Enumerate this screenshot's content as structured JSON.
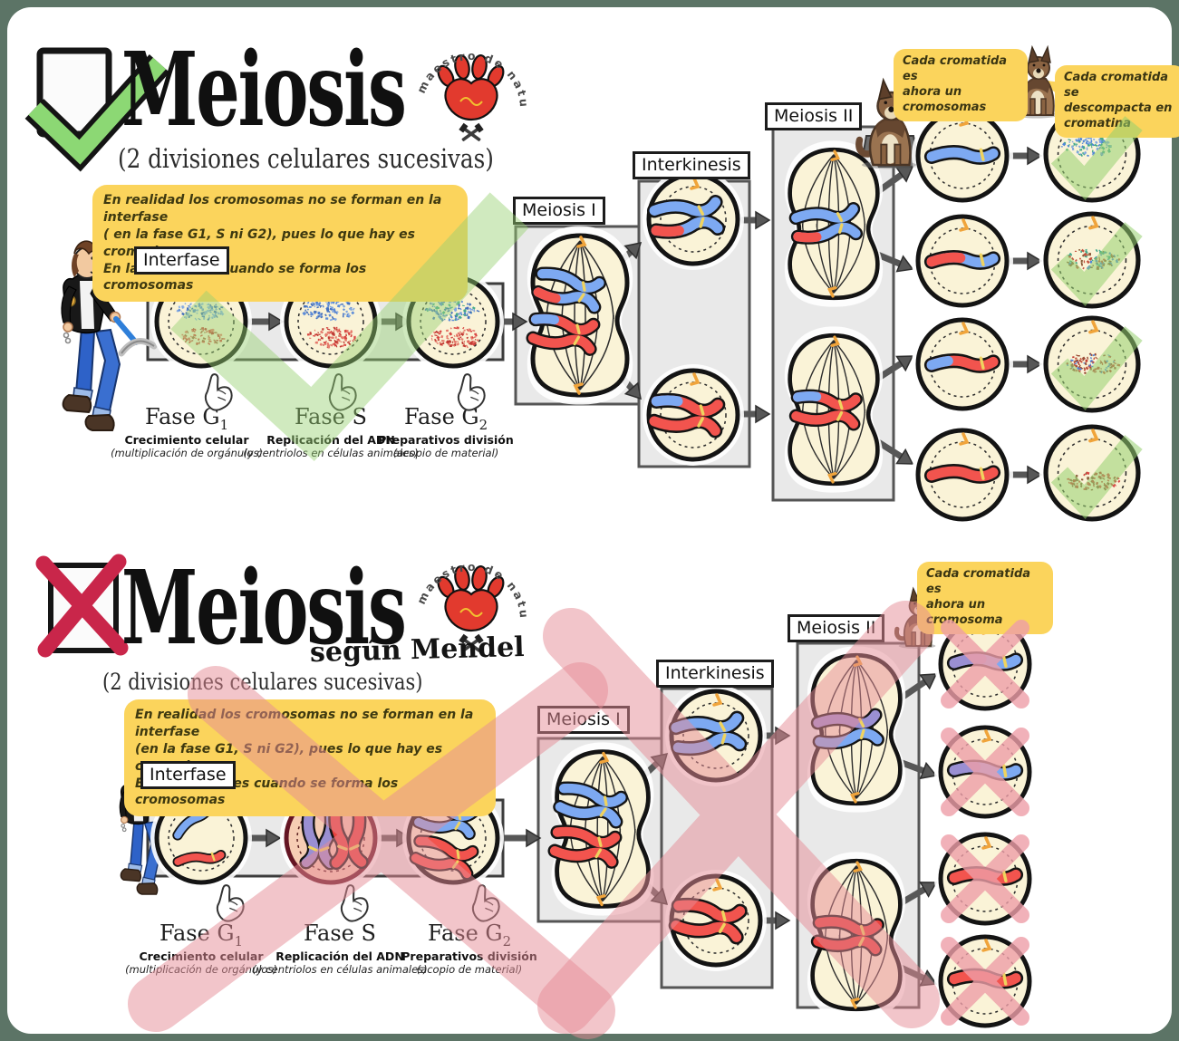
{
  "logo": {
    "arc_text": "maestro de naturales"
  },
  "phases": {
    "g1": {
      "name": "Fase G",
      "sub": "1",
      "desc": "Crecimiento celular",
      "detail": "(multiplicación de orgánulos)"
    },
    "s": {
      "name": "Fase S",
      "sub": "",
      "desc": "Replicación del ADN",
      "detail": "(y centriolos en células animales)"
    },
    "g2": {
      "name": "Fase G",
      "sub": "2",
      "desc": "Preparativos división",
      "detail": "(acopio de material)"
    }
  },
  "top": {
    "title": "Meiosis",
    "subtitle": "(2 divisiones celulares sucesivas)",
    "note": "En realidad los cromosomas no se forman en la interfase\n( en la fase G1, S ni G2), pues lo que hay es cromatina.\nEn la meiosis es cuando se forma los cromosomas",
    "interfase_label": "Interfase",
    "meiosis1_label": "Meiosis I",
    "interkinesis_label": "Interkinesis",
    "meiosis2_label": "Meiosis II",
    "bubble_chromosome": "Cada cromatida es\nahora un cromosomas",
    "bubble_chromatin": "Cada cromatida se\ndescompacta en\ncromatina"
  },
  "bottom": {
    "title": "Meiosis",
    "mendel_subtitle": "según Mendel",
    "subtitle": "(2 divisiones celulares sucesivas)",
    "note": "En realidad los cromosomas no se forman en la interfase\n(en la fase G1, S ni G2), pues lo que hay es cromatina.\nEn la meiosis es cuando se forma los cromosomas",
    "interfase_label": "Interfase",
    "meiosis1_label": "Meiosis I",
    "interkinesis_label": "Interkinesis",
    "meiosis2_label": "Meiosis II",
    "bubble_chromosome": "Cada cromatida es\nahora un cromosoma"
  },
  "colors": {
    "background": "#5C7466",
    "panel": "#FFFFFF",
    "cell_fill": "#FAF3D7",
    "note_yellow": "#FBD45C",
    "chromosome_blue": "#7DA9F2",
    "chromosome_red": "#F2544E",
    "chromosome_purple": "#9A8FD2",
    "check_green": "#8CD874",
    "cross_red": "#C9264A",
    "overlay_green": "#97CE72",
    "overlay_pink": "#E78A96"
  }
}
